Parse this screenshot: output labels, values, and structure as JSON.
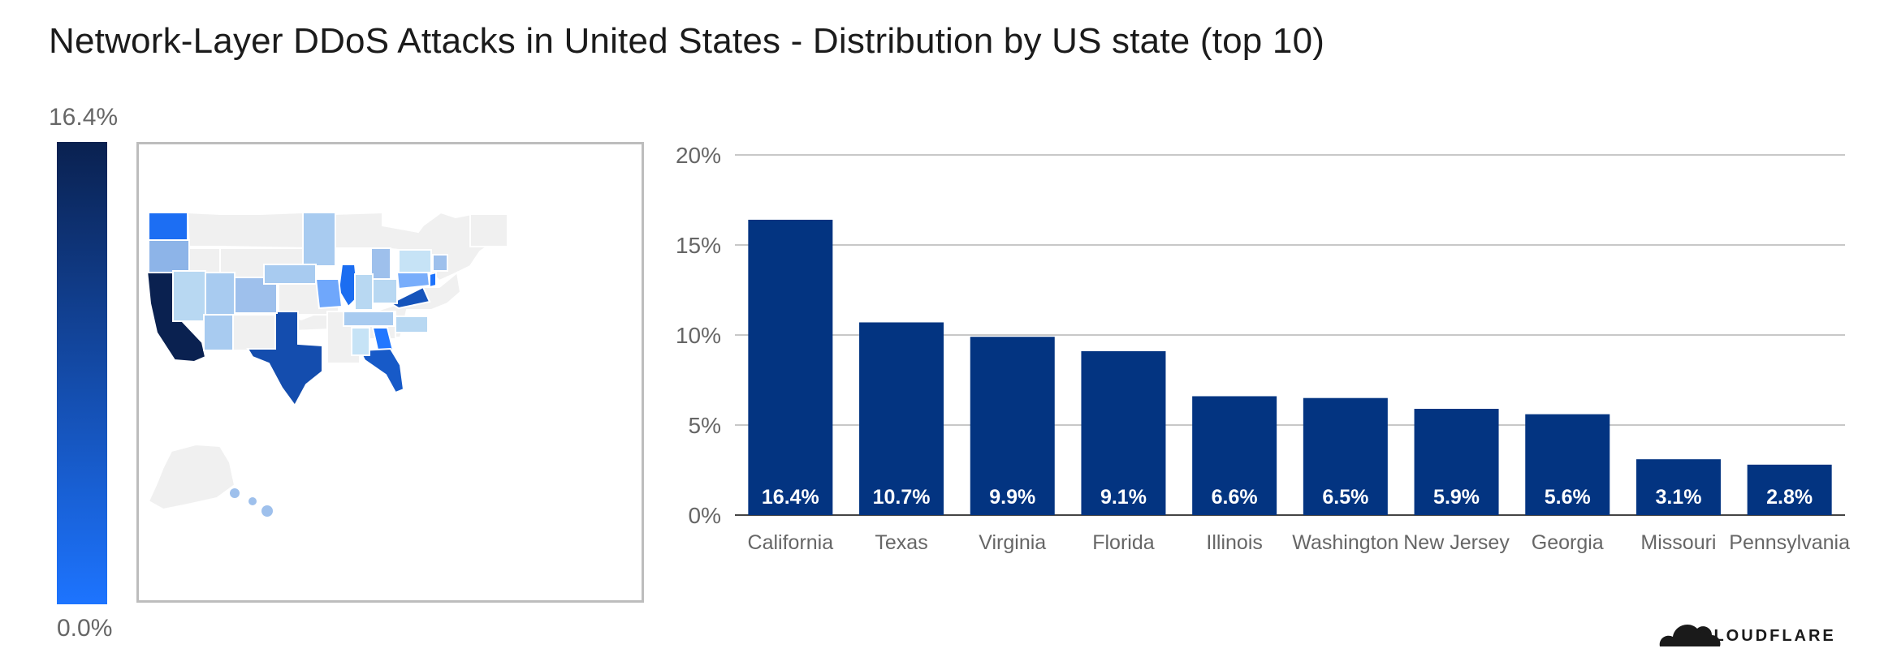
{
  "title": "Network-Layer DDoS Attacks in United States - Distribution by US state (top 10)",
  "legend": {
    "max_label": "16.4%",
    "min_label": "0.0%",
    "color_low": "#1d74ff",
    "color_high": "#0a2150"
  },
  "map": {
    "no_data_color": "#f0f0f0",
    "states": [
      {
        "name": "California",
        "value": 16.4
      },
      {
        "name": "Texas",
        "value": 10.7
      },
      {
        "name": "Virginia",
        "value": 9.9
      },
      {
        "name": "Florida",
        "value": 9.1
      },
      {
        "name": "Illinois",
        "value": 6.6
      },
      {
        "name": "Washington",
        "value": 6.5
      },
      {
        "name": "New Jersey",
        "value": 5.9
      },
      {
        "name": "Georgia",
        "value": 5.6
      },
      {
        "name": "Missouri",
        "value": 3.1
      },
      {
        "name": "Pennsylvania",
        "value": 2.8
      }
    ]
  },
  "chart_data": {
    "type": "bar",
    "categories": [
      "California",
      "Texas",
      "Virginia",
      "Florida",
      "Illinois",
      "Washington",
      "New Jersey",
      "Georgia",
      "Missouri",
      "Pennsylvania"
    ],
    "values": [
      16.4,
      10.7,
      9.9,
      9.1,
      6.6,
      6.5,
      5.9,
      5.6,
      3.1,
      2.8
    ],
    "data_labels": [
      "16.4%",
      "10.7%",
      "9.9%",
      "9.1%",
      "6.6%",
      "6.5%",
      "5.9%",
      "5.6%",
      "3.1%",
      "2.8%"
    ],
    "ylim": [
      0,
      20
    ],
    "yticks": [
      0,
      5,
      10,
      15,
      20
    ],
    "ytick_labels": [
      "0%",
      "5%",
      "10%",
      "15%",
      "20%"
    ],
    "bar_color": "#033481",
    "grid": true,
    "xlabel": "",
    "ylabel": ""
  },
  "brand": {
    "name": "CLOUDFLARE",
    "logo_icon": "cloud-icon"
  }
}
